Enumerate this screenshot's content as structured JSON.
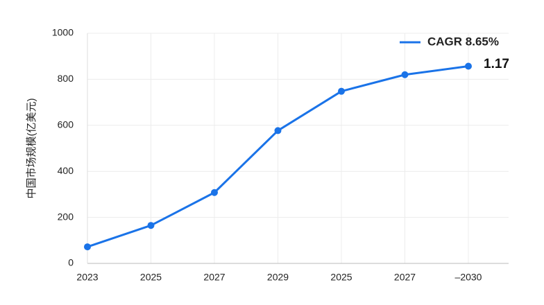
{
  "chart_data": {
    "type": "line",
    "y_label": "中国市场规模(亿美元)",
    "categories": [
      "2023",
      "2025",
      "2027",
      "2029",
      "2025",
      "2027",
      "–2030"
    ],
    "series": [
      {
        "name": "CAGR 8.65%",
        "color": "#1a73e8",
        "values": [
          72,
          165,
          308,
          577,
          748,
          820,
          857
        ]
      }
    ],
    "annotation": "1.17",
    "ylim": [
      0,
      1000
    ],
    "yticks": [
      0,
      200,
      400,
      600,
      800,
      1000
    ],
    "grid": true,
    "legend": "top-right"
  }
}
